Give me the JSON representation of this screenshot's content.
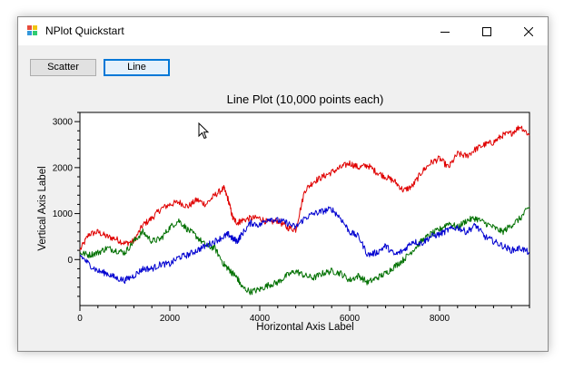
{
  "window": {
    "title": "NPlot Quickstart",
    "controls": {
      "minimize_icon": "minimize-icon",
      "maximize_icon": "maximize-icon",
      "close_icon": "close-icon"
    }
  },
  "toolbar": {
    "scatter_label": "Scatter",
    "line_label": "Line"
  },
  "chart_data": {
    "type": "line",
    "title": "Line Plot (10,000 points each)",
    "xlabel": "Horizontal Axis Label",
    "ylabel": "Vertical Axis Label",
    "xlim": [
      0,
      10000
    ],
    "ylim": [
      -1000,
      3200
    ],
    "x_ticks": [
      0,
      2000,
      4000,
      6000,
      8000
    ],
    "y_ticks": [
      0,
      1000,
      2000,
      3000
    ],
    "x_tick_labels": [
      "0",
      "2000",
      "4000",
      "6000",
      "8000"
    ],
    "y_tick_labels": [
      "0",
      "1000",
      "2000",
      "3000"
    ],
    "grid": false,
    "legend": "none",
    "x": [
      0,
      200,
      400,
      600,
      800,
      1000,
      1200,
      1400,
      1600,
      1800,
      2000,
      2200,
      2400,
      2600,
      2800,
      3000,
      3200,
      3300,
      3400,
      3500,
      3600,
      3800,
      4000,
      4200,
      4400,
      4600,
      4800,
      5000,
      5200,
      5400,
      5600,
      5800,
      6000,
      6200,
      6400,
      6600,
      6800,
      7000,
      7200,
      7400,
      7600,
      7800,
      8000,
      8200,
      8400,
      8600,
      8800,
      9000,
      9200,
      9400,
      9600,
      9800,
      10000
    ],
    "series": [
      {
        "color": "#e00000",
        "values": [
          200,
          550,
          600,
          500,
          450,
          350,
          400,
          750,
          900,
          1100,
          1200,
          1250,
          1150,
          1300,
          1200,
          1400,
          1550,
          1300,
          900,
          800,
          850,
          900,
          900,
          800,
          850,
          700,
          650,
          1500,
          1700,
          1800,
          1900,
          2000,
          2100,
          2000,
          2050,
          1900,
          1800,
          1700,
          1500,
          1600,
          1900,
          2100,
          2200,
          2000,
          2300,
          2250,
          2400,
          2500,
          2550,
          2700,
          2750,
          2900,
          2700
        ]
      },
      {
        "color": "#007000",
        "values": [
          150,
          100,
          150,
          250,
          200,
          150,
          400,
          600,
          400,
          450,
          700,
          850,
          650,
          500,
          300,
          250,
          -100,
          -200,
          -300,
          -400,
          -600,
          -700,
          -650,
          -550,
          -500,
          -350,
          -250,
          -350,
          -400,
          -300,
          -250,
          -300,
          -450,
          -350,
          -500,
          -400,
          -300,
          -150,
          0,
          200,
          400,
          550,
          650,
          800,
          700,
          850,
          900,
          800,
          700,
          600,
          750,
          900,
          1150
        ]
      },
      {
        "color": "#0000d0",
        "values": [
          100,
          -100,
          -250,
          -300,
          -400,
          -450,
          -350,
          -200,
          -200,
          -100,
          -100,
          50,
          100,
          200,
          300,
          400,
          500,
          550,
          450,
          400,
          550,
          800,
          750,
          900,
          850,
          800,
          700,
          900,
          1000,
          1050,
          1100,
          900,
          600,
          500,
          100,
          150,
          300,
          100,
          200,
          400,
          350,
          500,
          550,
          650,
          700,
          600,
          750,
          500,
          400,
          300,
          200,
          250,
          150
        ]
      }
    ]
  }
}
